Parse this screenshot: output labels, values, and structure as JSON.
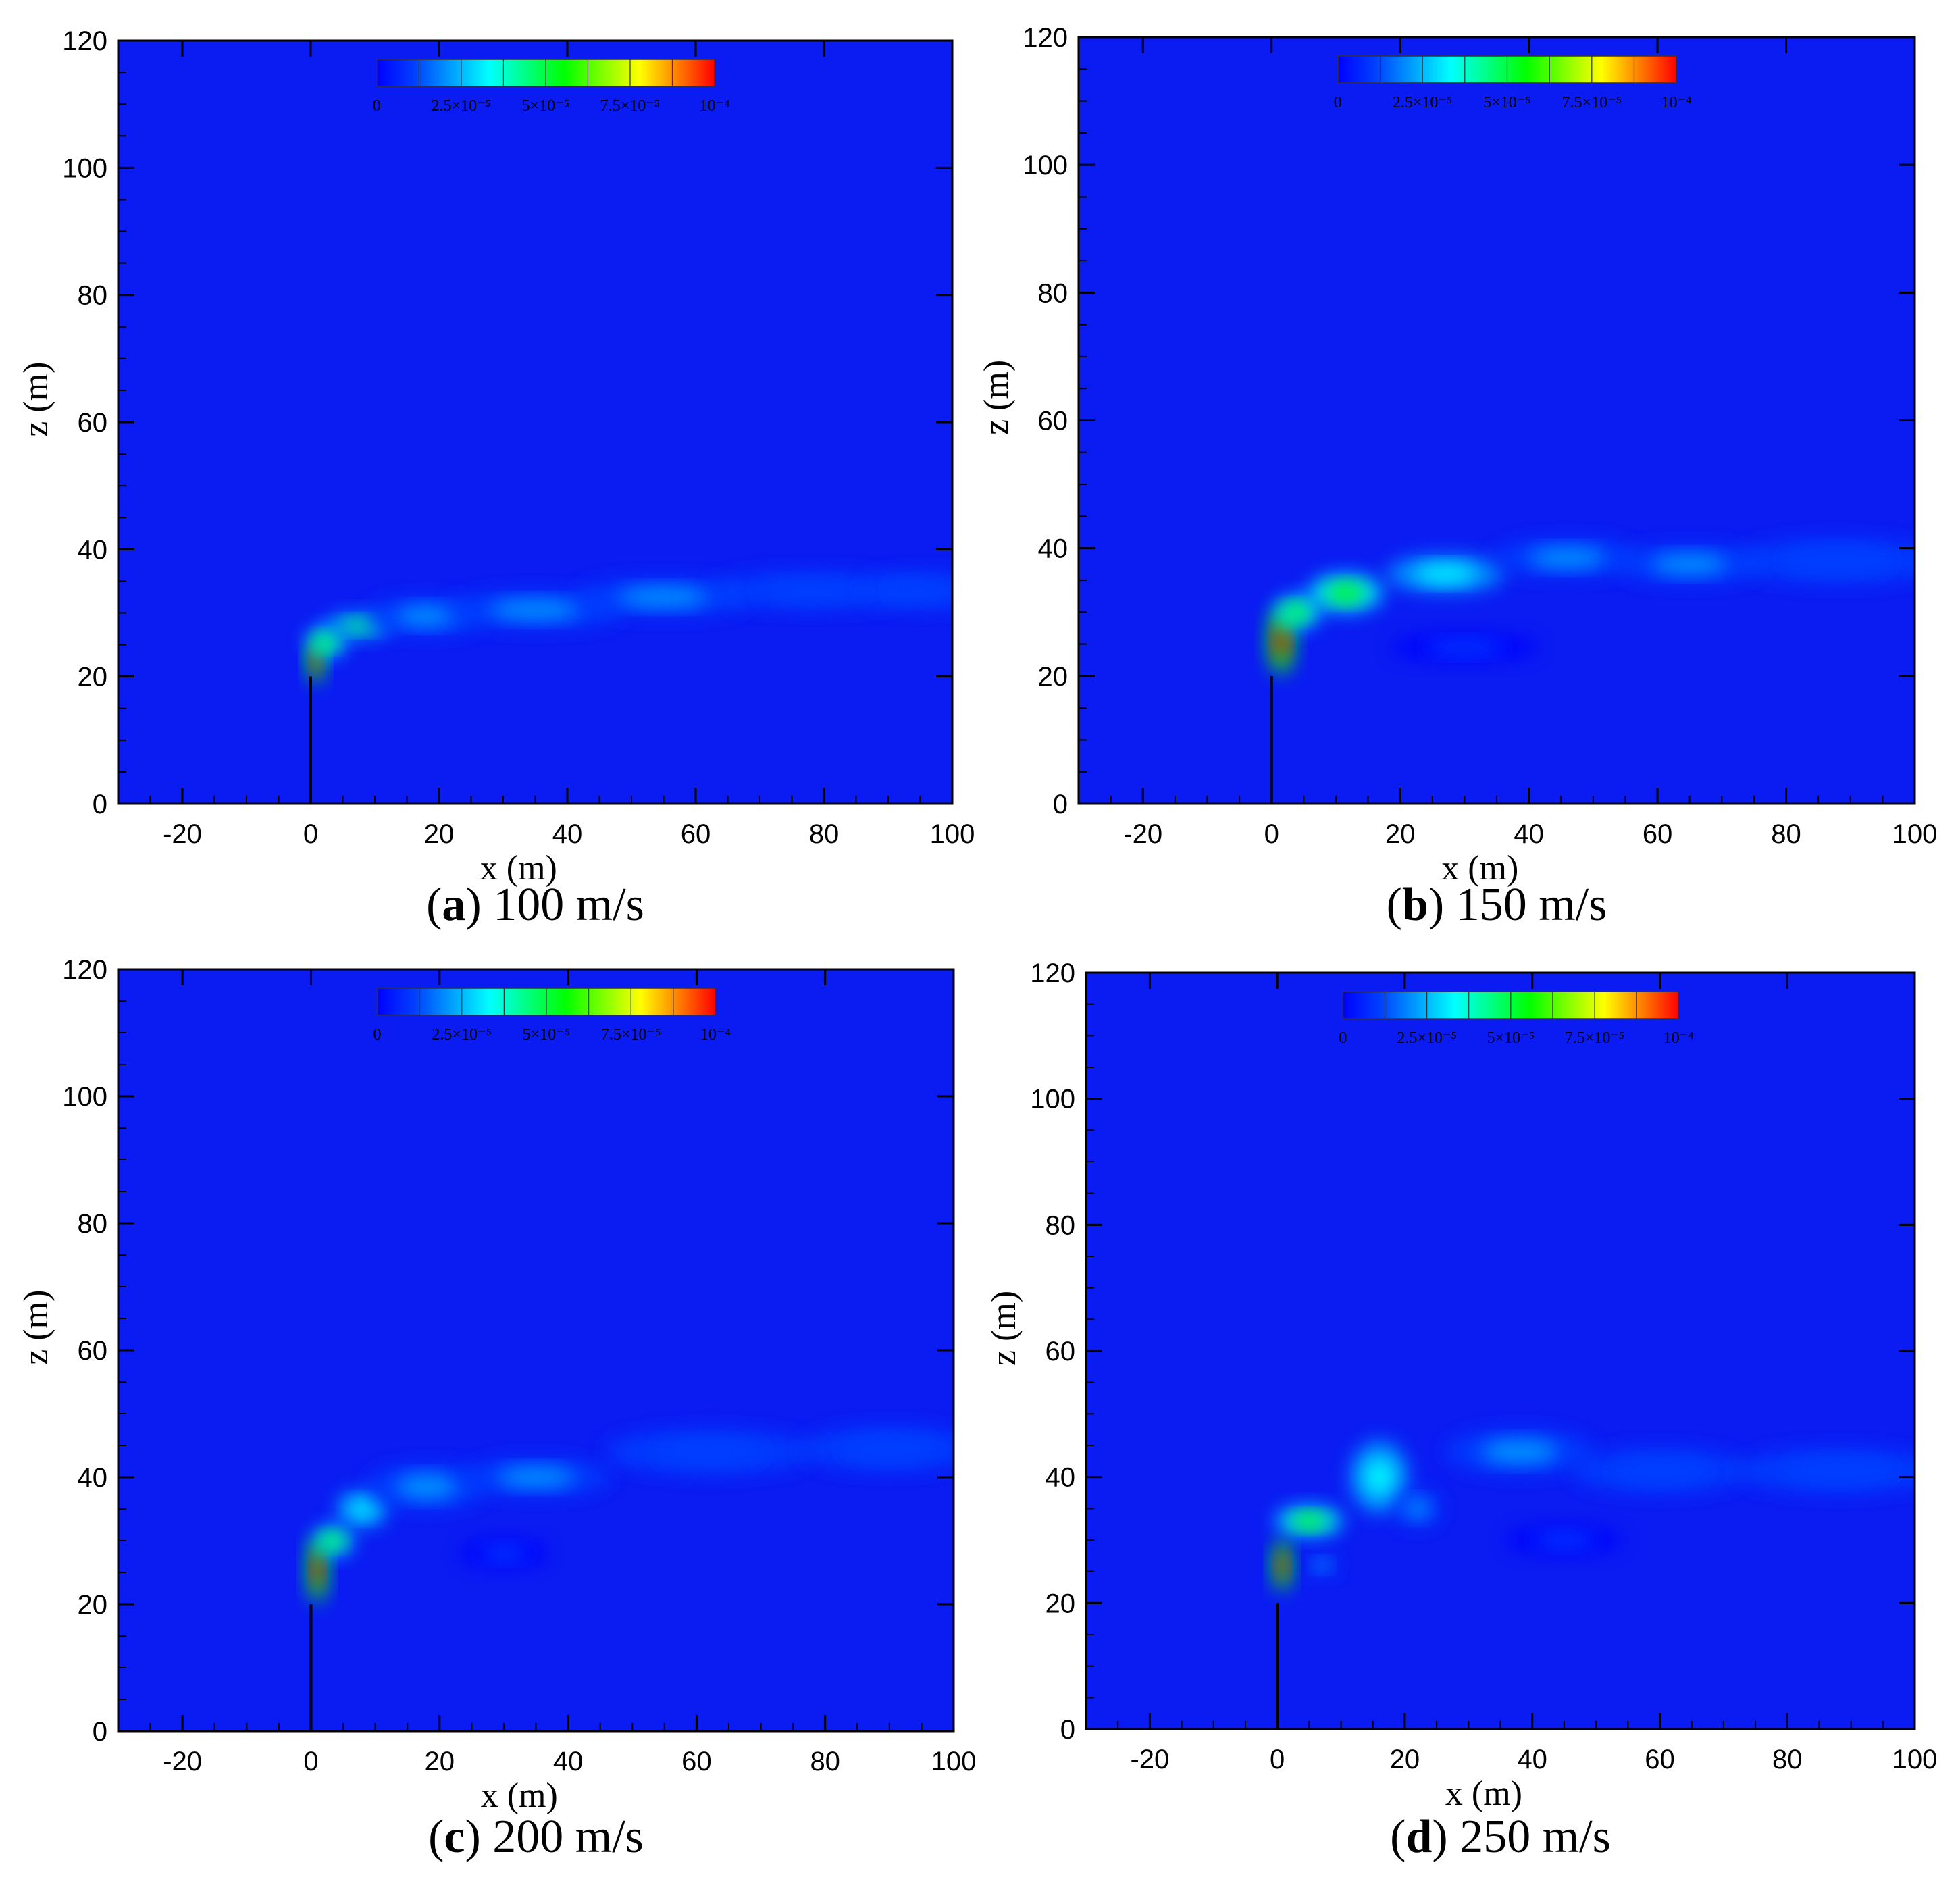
{
  "figure": {
    "colors": {
      "background_field": "#0a1cf2",
      "colormap": [
        "#0000ff",
        "#0040ff",
        "#00a0ff",
        "#00ffff",
        "#00ff80",
        "#00ff00",
        "#80ff00",
        "#ffff00",
        "#ff8000",
        "#ff0000"
      ]
    }
  },
  "chart_data": [
    {
      "type": "heatmap",
      "panel_id": "a",
      "caption_letter": "a",
      "caption_text": "100 m/s",
      "xlabel": "x (m)",
      "ylabel": "z (m)",
      "xlim": [
        -30,
        100
      ],
      "ylim": [
        0,
        120
      ],
      "xticks": [
        -20,
        0,
        20,
        40,
        60,
        80,
        100
      ],
      "yticks": [
        0,
        20,
        40,
        60,
        80,
        100,
        120
      ],
      "colorbar": {
        "min": 0,
        "max": 0.0001,
        "tick_labels": [
          "0",
          "2.5×10⁻⁵",
          "5×10⁻⁵",
          "7.5×10⁻⁵",
          "10⁻⁴"
        ]
      },
      "stack": {
        "x": 0,
        "height": 20
      },
      "plume": [
        {
          "x": 0.8,
          "z": 22.5,
          "rx": 1.2,
          "rz": 3.0,
          "level": 1.0
        },
        {
          "x": 2.5,
          "z": 25.5,
          "rx": 2.5,
          "rz": 2.0,
          "level": 0.55
        },
        {
          "x": 7.5,
          "z": 28.0,
          "rx": 4.5,
          "rz": 1.8,
          "level": 0.45
        },
        {
          "x": 18,
          "z": 29.5,
          "rx": 8,
          "rz": 2.5,
          "level": 0.25
        },
        {
          "x": 35,
          "z": 30.5,
          "rx": 12,
          "rz": 2.5,
          "level": 0.2
        },
        {
          "x": 55,
          "z": 32.5,
          "rx": 12,
          "rz": 2.5,
          "level": 0.18
        },
        {
          "x": 78,
          "z": 33.5,
          "rx": 14,
          "rz": 2.5,
          "level": 0.15
        },
        {
          "x": 95,
          "z": 33.5,
          "rx": 8,
          "rz": 2.5,
          "level": 0.12
        }
      ]
    },
    {
      "type": "heatmap",
      "panel_id": "b",
      "caption_letter": "b",
      "caption_text": "150 m/s",
      "xlabel": "x (m)",
      "ylabel": "z (m)",
      "xlim": [
        -30,
        100
      ],
      "ylim": [
        0,
        120
      ],
      "xticks": [
        -20,
        0,
        20,
        40,
        60,
        80,
        100
      ],
      "yticks": [
        0,
        20,
        40,
        60,
        80,
        100,
        120
      ],
      "colorbar": {
        "min": 0,
        "max": 0.0001,
        "tick_labels": [
          "0",
          "2.5×10⁻⁵",
          "5×10⁻⁵",
          "7.5×10⁻⁵",
          "10⁻⁴"
        ]
      },
      "stack": {
        "x": 0,
        "height": 20
      },
      "plume": [
        {
          "x": 1.5,
          "z": 25.5,
          "rx": 1.8,
          "rz": 4.5,
          "level": 1.0
        },
        {
          "x": 4,
          "z": 30.0,
          "rx": 3,
          "rz": 2.2,
          "level": 0.5
        },
        {
          "x": 11.5,
          "z": 33.0,
          "rx": 5,
          "rz": 2.5,
          "level": 0.55
        },
        {
          "x": 27,
          "z": 36.0,
          "rx": 8,
          "rz": 2.5,
          "level": 0.3
        },
        {
          "x": 46,
          "z": 38.5,
          "rx": 10,
          "rz": 2.5,
          "level": 0.2
        },
        {
          "x": 65,
          "z": 37.5,
          "rx": 10,
          "rz": 2.5,
          "level": 0.18
        },
        {
          "x": 88,
          "z": 38.0,
          "rx": 14,
          "rz": 3,
          "level": 0.15
        },
        {
          "x": 30,
          "z": 24.5,
          "rx": 10,
          "rz": 2,
          "level": 0.06
        }
      ]
    },
    {
      "type": "heatmap",
      "panel_id": "c",
      "caption_letter": "c",
      "caption_text": "200 m/s",
      "xlabel": "x (m)",
      "ylabel": "z (m)",
      "xlim": [
        -30,
        100
      ],
      "ylim": [
        0,
        120
      ],
      "xticks": [
        -20,
        0,
        20,
        40,
        60,
        80,
        100
      ],
      "yticks": [
        0,
        20,
        40,
        60,
        80,
        100,
        120
      ],
      "colorbar": {
        "min": 0,
        "max": 0.0001,
        "tick_labels": [
          "0",
          "2.5×10⁻⁵",
          "5×10⁻⁵",
          "7.5×10⁻⁵",
          "10⁻⁴"
        ]
      },
      "stack": {
        "x": 0,
        "height": 20
      },
      "plume": [
        {
          "x": 1.0,
          "z": 25.5,
          "rx": 1.4,
          "rz": 4.5,
          "level": 1.0
        },
        {
          "x": 3.5,
          "z": 30.0,
          "rx": 2.5,
          "rz": 2.0,
          "level": 0.5
        },
        {
          "x": 8,
          "z": 35.0,
          "rx": 3.5,
          "rz": 2.5,
          "level": 0.3
        },
        {
          "x": 18,
          "z": 38.5,
          "rx": 8,
          "rz": 3,
          "level": 0.22
        },
        {
          "x": 35,
          "z": 40.0,
          "rx": 10,
          "rz": 2.5,
          "level": 0.18
        },
        {
          "x": 62,
          "z": 44.0,
          "rx": 14,
          "rz": 3,
          "level": 0.15
        },
        {
          "x": 90,
          "z": 44.5,
          "rx": 12,
          "rz": 3,
          "level": 0.14
        },
        {
          "x": 30,
          "z": 28.0,
          "rx": 6,
          "rz": 2,
          "level": 0.08
        }
      ]
    },
    {
      "type": "heatmap",
      "panel_id": "d",
      "caption_letter": "d",
      "caption_text": "250 m/s",
      "xlabel": "x (m)",
      "ylabel": "z (m)",
      "xlim": [
        -30,
        100
      ],
      "ylim": [
        0,
        120
      ],
      "xticks": [
        -20,
        0,
        20,
        40,
        60,
        80,
        100
      ],
      "yticks": [
        0,
        20,
        40,
        60,
        80,
        100,
        120
      ],
      "colorbar": {
        "min": 0,
        "max": 0.0001,
        "tick_labels": [
          "0",
          "2.5×10⁻⁵",
          "5×10⁻⁵",
          "7.5×10⁻⁵",
          "10⁻⁴"
        ]
      },
      "stack": {
        "x": 0,
        "height": 20
      },
      "plume": [
        {
          "x": 0.8,
          "z": 26.0,
          "rx": 1.3,
          "rz": 3.5,
          "level": 1.0
        },
        {
          "x": 5,
          "z": 33.0,
          "rx": 4.5,
          "rz": 2.0,
          "level": 0.55
        },
        {
          "x": 16,
          "z": 40.0,
          "rx": 4,
          "rz": 5,
          "level": 0.3
        },
        {
          "x": 22,
          "z": 35.0,
          "rx": 3,
          "rz": 2.5,
          "level": 0.22
        },
        {
          "x": 7,
          "z": 26.0,
          "rx": 2,
          "rz": 1.5,
          "level": 0.2
        },
        {
          "x": 38,
          "z": 44.0,
          "rx": 10,
          "rz": 3,
          "level": 0.18
        },
        {
          "x": 60,
          "z": 41.0,
          "rx": 12,
          "rz": 3,
          "level": 0.16
        },
        {
          "x": 88,
          "z": 41.0,
          "rx": 14,
          "rz": 3,
          "level": 0.15
        },
        {
          "x": 45,
          "z": 30.0,
          "rx": 8,
          "rz": 2,
          "level": 0.08
        }
      ]
    }
  ]
}
